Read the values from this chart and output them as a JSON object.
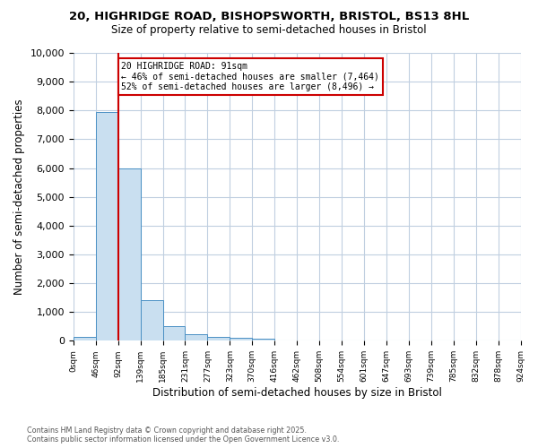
{
  "title_line1": "20, HIGHRIDGE ROAD, BISHOPSWORTH, BRISTOL, BS13 8HL",
  "title_line2": "Size of property relative to semi-detached houses in Bristol",
  "xlabel": "Distribution of semi-detached houses by size in Bristol",
  "ylabel": "Number of semi-detached properties",
  "bar_values": [
    150,
    7950,
    6000,
    1400,
    500,
    230,
    120,
    100,
    60,
    0,
    0,
    0,
    0,
    0,
    0,
    0,
    0,
    0,
    0,
    0
  ],
  "bin_labels": [
    "0sqm",
    "46sqm",
    "92sqm",
    "139sqm",
    "185sqm",
    "231sqm",
    "277sqm",
    "323sqm",
    "370sqm",
    "416sqm",
    "462sqm",
    "508sqm",
    "554sqm",
    "601sqm",
    "647sqm",
    "693sqm",
    "739sqm",
    "785sqm",
    "832sqm",
    "878sqm",
    "924sqm"
  ],
  "bar_color": "#c9dff0",
  "bar_edge_color": "#4a90c4",
  "red_line_x": 2,
  "annotation_title": "20 HIGHRIDGE ROAD: 91sqm",
  "annotation_line1": "← 46% of semi-detached houses are smaller (7,464)",
  "annotation_line2": "52% of semi-detached houses are larger (8,496) →",
  "annotation_box_color": "#ffffff",
  "annotation_box_edge": "#cc0000",
  "red_line_color": "#cc0000",
  "ylim": [
    0,
    10000
  ],
  "yticks": [
    0,
    1000,
    2000,
    3000,
    4000,
    5000,
    6000,
    7000,
    8000,
    9000,
    10000
  ],
  "footer_line1": "Contains HM Land Registry data © Crown copyright and database right 2025.",
  "footer_line2": "Contains public sector information licensed under the Open Government Licence v3.0.",
  "background_color": "#ffffff",
  "grid_color": "#c0cfe0"
}
